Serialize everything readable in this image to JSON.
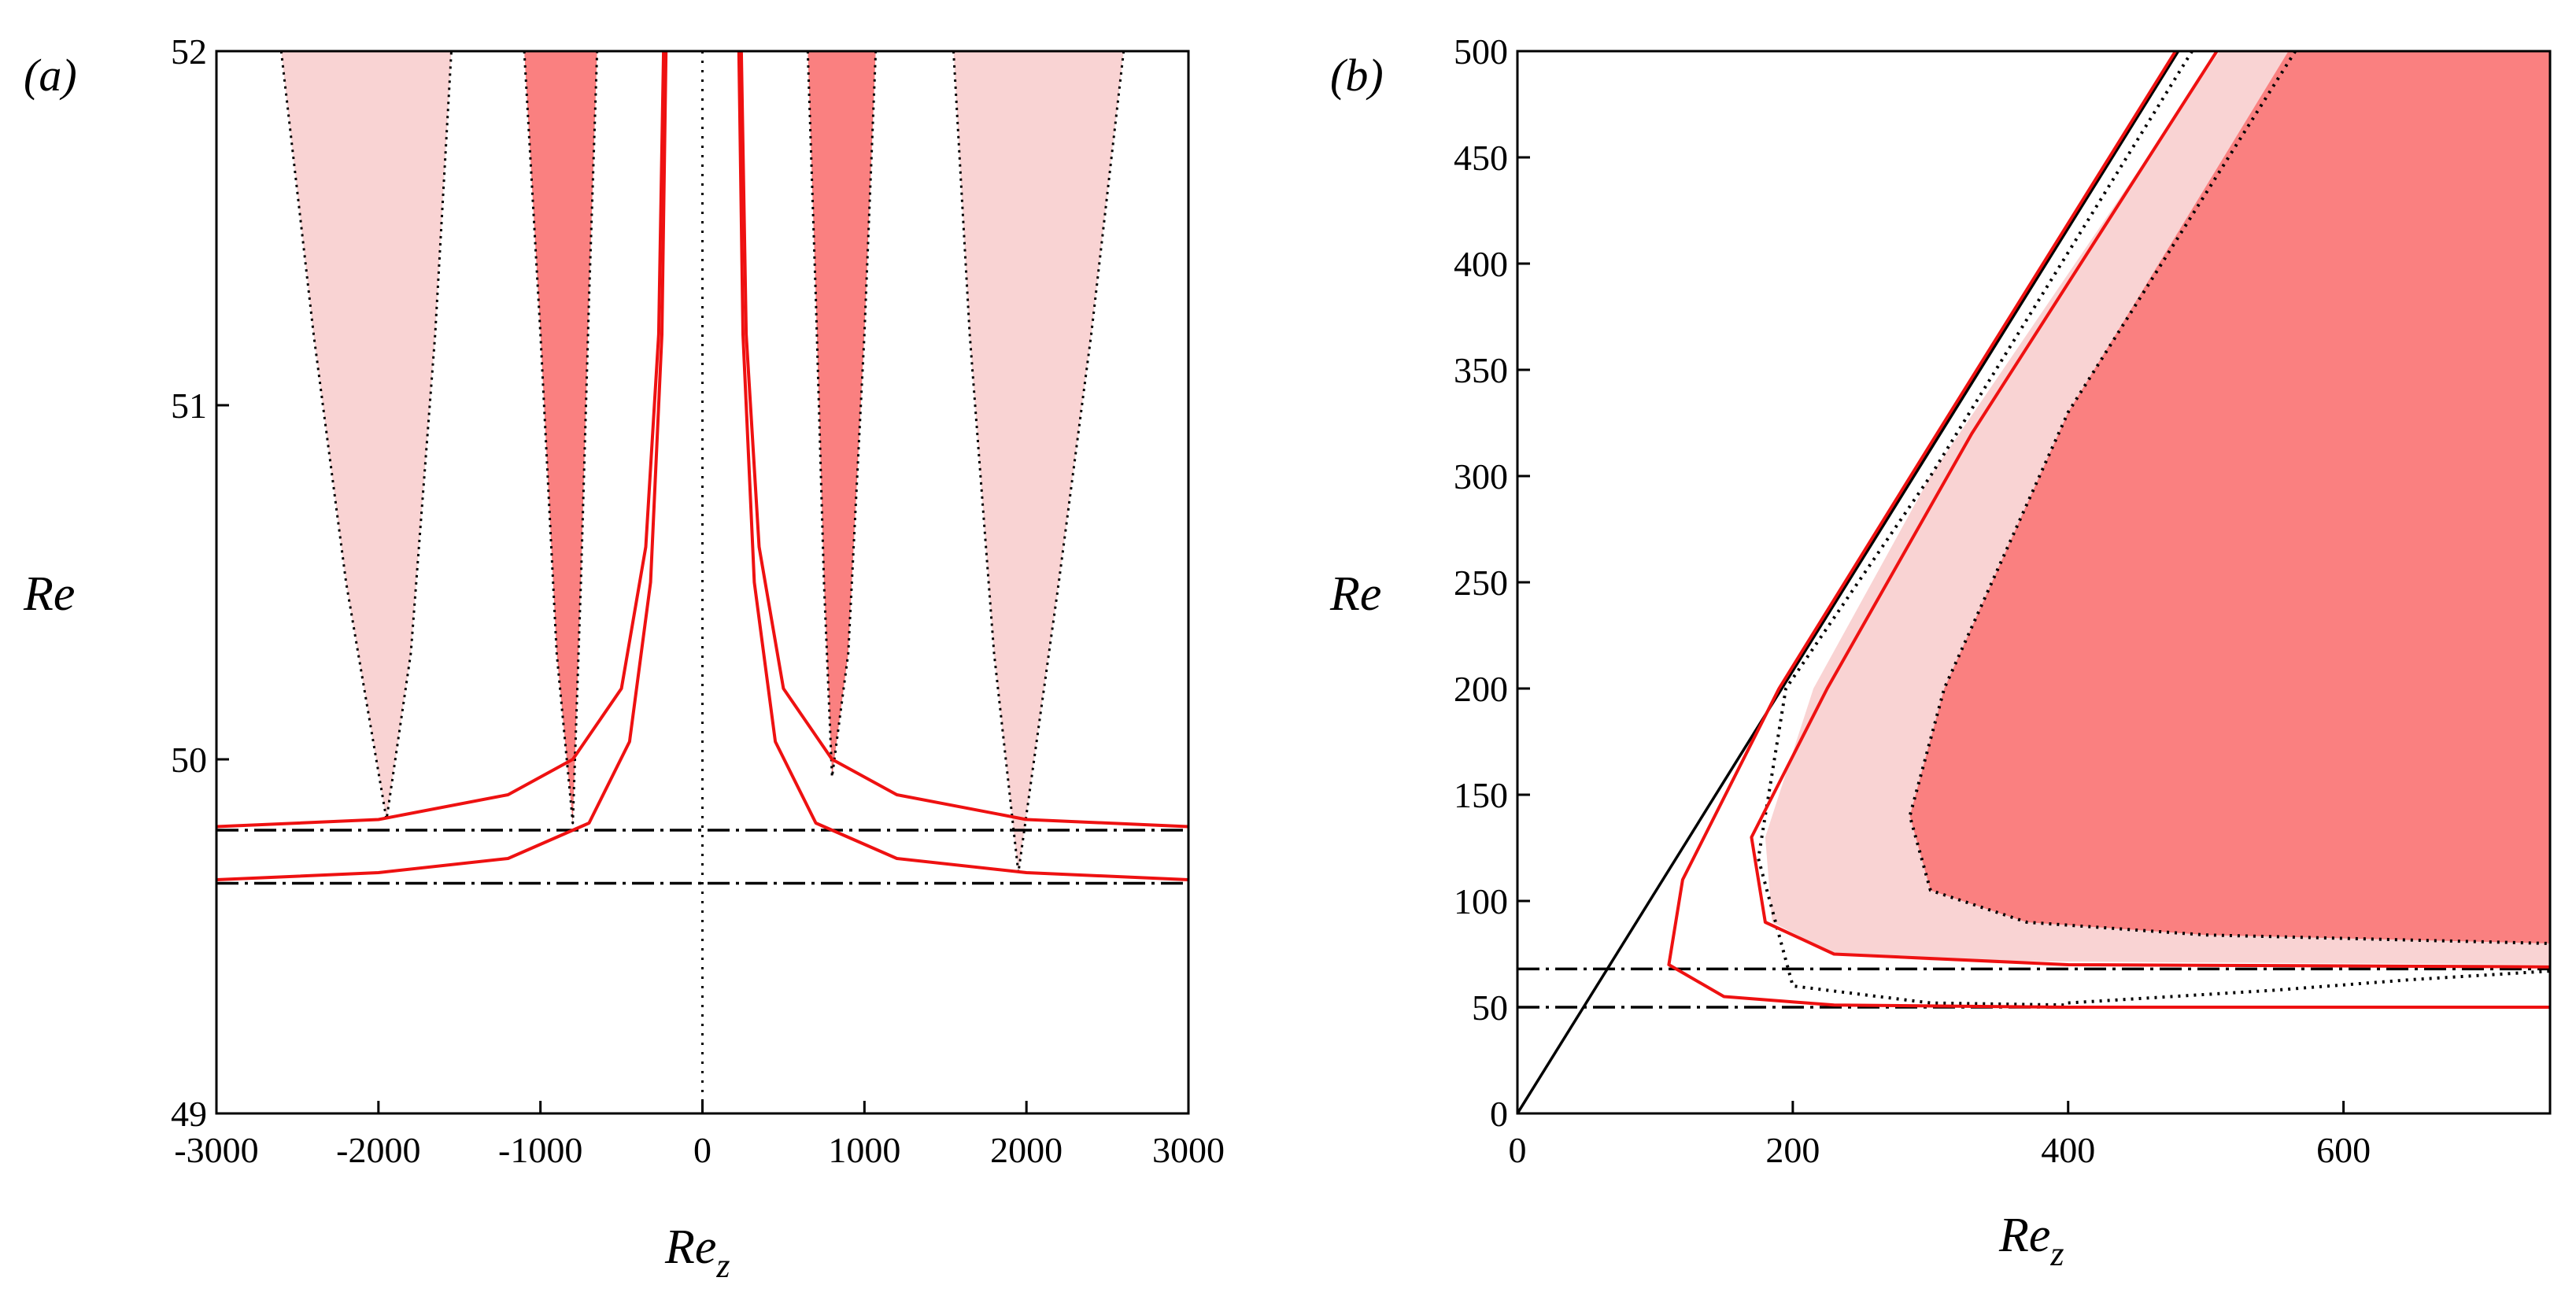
{
  "colors": {
    "dark_region": "#fa8080",
    "light_region": "#f9d3d3",
    "red_curve": "#ee1111",
    "black": "#000000"
  },
  "chart_data": [
    {
      "panel": "(a)",
      "type": "area",
      "xlabel_main": "Re",
      "xlabel_sub": "z",
      "ylabel": "Re",
      "xlim": [
        -3000,
        3000
      ],
      "ylim": [
        49,
        52
      ],
      "xticks": [
        -3000,
        -2000,
        -1000,
        0,
        1000,
        2000,
        3000
      ],
      "xtick_labels": [
        "-3000",
        "-2000",
        "-1000",
        "0",
        "1000",
        "2000",
        "3000"
      ],
      "yticks": [
        49,
        50,
        51,
        52
      ],
      "ytick_labels": [
        "49",
        "50",
        "51",
        "52"
      ],
      "hlines": [
        49.8,
        49.65
      ],
      "vline_x": 0,
      "regions": [
        {
          "shade": "light",
          "series": [
            {
              "x": -2600,
              "y": 52
            },
            {
              "x": -2400,
              "y": 51.2
            },
            {
              "x": -2200,
              "y": 50.5
            },
            {
              "x": -1950,
              "y": 49.83
            },
            {
              "x": -1800,
              "y": 50.3
            },
            {
              "x": -1650,
              "y": 51.2
            },
            {
              "x": -1550,
              "y": 52
            }
          ]
        },
        {
          "shade": "dark",
          "series": [
            {
              "x": -1100,
              "y": 52
            },
            {
              "x": -1000,
              "y": 51.2
            },
            {
              "x": -900,
              "y": 50.3
            },
            {
              "x": -800,
              "y": 49.82
            },
            {
              "x": -750,
              "y": 50.5
            },
            {
              "x": -700,
              "y": 51.3
            },
            {
              "x": -650,
              "y": 52
            }
          ]
        },
        {
          "shade": "dark",
          "series": [
            {
              "x": 650,
              "y": 52
            },
            {
              "x": 700,
              "y": 51.3
            },
            {
              "x": 750,
              "y": 50.5
            },
            {
              "x": 800,
              "y": 49.95
            },
            {
              "x": 900,
              "y": 50.3
            },
            {
              "x": 1000,
              "y": 51.2
            },
            {
              "x": 1070,
              "y": 52
            }
          ]
        },
        {
          "shade": "light",
          "series": [
            {
              "x": 1550,
              "y": 52
            },
            {
              "x": 1650,
              "y": 51.2
            },
            {
              "x": 1800,
              "y": 50.3
            },
            {
              "x": 1950,
              "y": 49.68
            },
            {
              "x": 2200,
              "y": 50.5
            },
            {
              "x": 2400,
              "y": 51.2
            },
            {
              "x": 2600,
              "y": 52
            }
          ]
        }
      ],
      "curves": [
        {
          "series": [
            {
              "x": -3000,
              "y": 49.81
            },
            {
              "x": -2000,
              "y": 49.83
            },
            {
              "x": -1200,
              "y": 49.9
            },
            {
              "x": -800,
              "y": 50.0
            },
            {
              "x": -500,
              "y": 50.2
            },
            {
              "x": -350,
              "y": 50.6
            },
            {
              "x": -270,
              "y": 51.2
            },
            {
              "x": -240,
              "y": 52
            }
          ]
        },
        {
          "series": [
            {
              "x": -3000,
              "y": 49.66
            },
            {
              "x": -2000,
              "y": 49.68
            },
            {
              "x": -1200,
              "y": 49.72
            },
            {
              "x": -700,
              "y": 49.82
            },
            {
              "x": -450,
              "y": 50.05
            },
            {
              "x": -320,
              "y": 50.5
            },
            {
              "x": -250,
              "y": 51.2
            },
            {
              "x": -225,
              "y": 52
            }
          ]
        },
        {
          "series": [
            {
              "x": 240,
              "y": 52
            },
            {
              "x": 270,
              "y": 51.2
            },
            {
              "x": 350,
              "y": 50.6
            },
            {
              "x": 500,
              "y": 50.2
            },
            {
              "x": 800,
              "y": 50.0
            },
            {
              "x": 1200,
              "y": 49.9
            },
            {
              "x": 2000,
              "y": 49.83
            },
            {
              "x": 3000,
              "y": 49.81
            }
          ]
        },
        {
          "series": [
            {
              "x": 225,
              "y": 52
            },
            {
              "x": 250,
              "y": 51.2
            },
            {
              "x": 320,
              "y": 50.5
            },
            {
              "x": 450,
              "y": 50.05
            },
            {
              "x": 700,
              "y": 49.82
            },
            {
              "x": 1200,
              "y": 49.72
            },
            {
              "x": 2000,
              "y": 49.68
            },
            {
              "x": 3000,
              "y": 49.66
            }
          ]
        }
      ]
    },
    {
      "panel": "(b)",
      "type": "area",
      "xlabel_main": "Re",
      "xlabel_sub": "z",
      "ylabel": "Re",
      "xlim": [
        0,
        750
      ],
      "ylim": [
        0,
        500
      ],
      "xticks": [
        0,
        200,
        400,
        600
      ],
      "xtick_labels": [
        "0",
        "200",
        "400",
        "600"
      ],
      "yticks": [
        0,
        50,
        100,
        150,
        200,
        250,
        300,
        350,
        400,
        450,
        500
      ],
      "ytick_labels": [
        "0",
        "50",
        "100",
        "150",
        "200",
        "250",
        "300",
        "350",
        "400",
        "450",
        "500"
      ],
      "hlines": [
        68,
        50
      ],
      "diagonal": [
        {
          "x": 0,
          "y": 0
        },
        {
          "x": 480,
          "y": 500
        }
      ],
      "regions": [
        {
          "shade": "light",
          "series": [
            {
              "x": 510,
              "y": 500
            },
            {
              "x": 300,
              "y": 300
            },
            {
              "x": 215,
              "y": 200
            },
            {
              "x": 180,
              "y": 130
            },
            {
              "x": 185,
              "y": 90
            },
            {
              "x": 230,
              "y": 75
            },
            {
              "x": 300,
              "y": 72
            },
            {
              "x": 500,
              "y": 71
            },
            {
              "x": 750,
              "y": 70
            },
            {
              "x": 750,
              "y": 500
            }
          ]
        },
        {
          "shade": "dark",
          "series": [
            {
              "x": 560,
              "y": 500
            },
            {
              "x": 400,
              "y": 330
            },
            {
              "x": 310,
              "y": 200
            },
            {
              "x": 285,
              "y": 140
            },
            {
              "x": 300,
              "y": 105
            },
            {
              "x": 370,
              "y": 90
            },
            {
              "x": 500,
              "y": 84
            },
            {
              "x": 750,
              "y": 80
            },
            {
              "x": 750,
              "y": 500
            }
          ]
        }
      ],
      "curves": [
        {
          "series": [
            {
              "x": 478,
              "y": 500
            },
            {
              "x": 300,
              "y": 315
            },
            {
              "x": 190,
              "y": 200
            },
            {
              "x": 120,
              "y": 110
            },
            {
              "x": 110,
              "y": 70
            },
            {
              "x": 150,
              "y": 55
            },
            {
              "x": 230,
              "y": 51
            },
            {
              "x": 400,
              "y": 50
            },
            {
              "x": 750,
              "y": 50
            }
          ]
        },
        {
          "series": [
            {
              "x": 508,
              "y": 500
            },
            {
              "x": 330,
              "y": 320
            },
            {
              "x": 225,
              "y": 200
            },
            {
              "x": 170,
              "y": 130
            },
            {
              "x": 180,
              "y": 90
            },
            {
              "x": 230,
              "y": 75
            },
            {
              "x": 400,
              "y": 70
            },
            {
              "x": 750,
              "y": 69
            }
          ]
        }
      ],
      "dotted_boundaries": [
        {
          "series": [
            {
              "x": 490,
              "y": 500
            },
            {
              "x": 300,
              "y": 300
            },
            {
              "x": 195,
              "y": 200
            },
            {
              "x": 175,
              "y": 120
            },
            {
              "x": 200,
              "y": 60
            },
            {
              "x": 300,
              "y": 52
            },
            {
              "x": 400,
              "y": 51
            }
          ]
        },
        {
          "series": [
            {
              "x": 565,
              "y": 500
            },
            {
              "x": 400,
              "y": 330
            },
            {
              "x": 310,
              "y": 200
            },
            {
              "x": 285,
              "y": 140
            },
            {
              "x": 300,
              "y": 105
            },
            {
              "x": 370,
              "y": 90
            },
            {
              "x": 500,
              "y": 84
            },
            {
              "x": 750,
              "y": 80
            }
          ]
        },
        {
          "series": [
            {
              "x": 400,
              "y": 52
            },
            {
              "x": 550,
              "y": 58
            },
            {
              "x": 650,
              "y": 63
            },
            {
              "x": 750,
              "y": 67
            }
          ]
        }
      ]
    }
  ]
}
